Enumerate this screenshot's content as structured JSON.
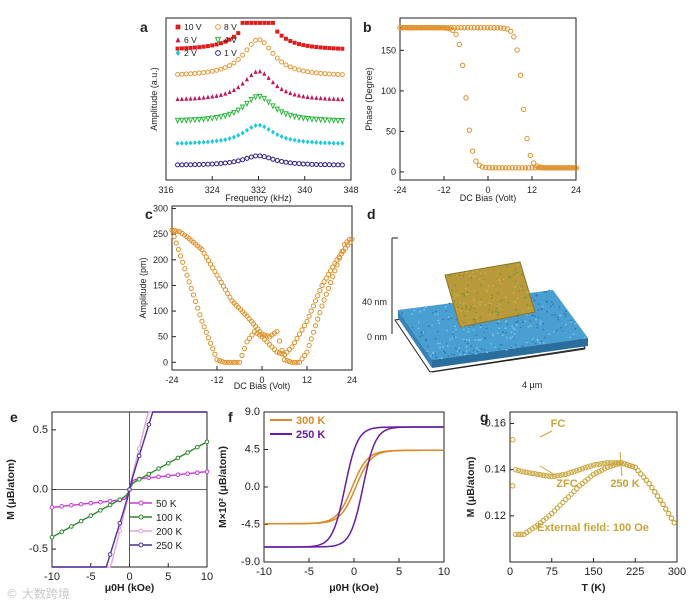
{
  "figure": {
    "watermark": "© 大数跨境",
    "colors": {
      "orange": "#e0902a",
      "purple": "#5b1a8a",
      "axis": "#222222",
      "gold": "#c9a33a"
    }
  },
  "chart_data": [
    {
      "panel": "a",
      "type": "scatter",
      "xlabel": "Frequency (kHz)",
      "ylabel": "Amplitude (a.u.)",
      "xlim": [
        316,
        348
      ],
      "xticks": [
        316,
        324,
        332,
        340,
        348
      ],
      "legend": [
        {
          "name": "10 V",
          "color": "#e01b1b",
          "marker": "square"
        },
        {
          "name": "8 V",
          "color": "#e39a3a",
          "marker": "circle"
        },
        {
          "name": "6 V",
          "color": "#c4145a",
          "marker": "triangle"
        },
        {
          "name": "4 V",
          "color": "#29b83a",
          "marker": "triangle-down"
        },
        {
          "name": "2 V",
          "color": "#1ec9d8",
          "marker": "diamond"
        },
        {
          "name": "1 V",
          "color": "#2c1f8a",
          "marker": "circle"
        }
      ],
      "series": [
        {
          "name": "10 V",
          "baseline": 0.8,
          "peak": 0.72,
          "width": 3.0,
          "color": "#e01b1b"
        },
        {
          "name": "8 V",
          "baseline": 0.64,
          "peak": 0.65,
          "width": 3.2,
          "color": "#e39a3a"
        },
        {
          "name": "6 V",
          "baseline": 0.49,
          "peak": 0.52,
          "width": 3.2,
          "color": "#c4145a"
        },
        {
          "name": "4 V",
          "baseline": 0.36,
          "peak": 0.45,
          "width": 3.2,
          "color": "#29b83a"
        },
        {
          "name": "2 V",
          "baseline": 0.22,
          "peak": 0.34,
          "width": 3.3,
          "color": "#1ec9d8"
        },
        {
          "name": "1 V",
          "baseline": 0.09,
          "peak": 0.17,
          "width": 3.3,
          "color": "#2c1f8a"
        }
      ]
    },
    {
      "panel": "b",
      "type": "scatter",
      "xlabel": "DC Bias (Volt)",
      "ylabel": "Phase (Degree)",
      "xlim": [
        -24,
        24
      ],
      "ylim": [
        -10,
        190
      ],
      "xticks": [
        -24,
        -12,
        0,
        12,
        24
      ],
      "yticks": [
        0,
        50,
        100,
        150
      ],
      "loop": {
        "high": 178,
        "low": 5,
        "switch_down": -6,
        "switch_up": 9,
        "width": 1.8
      }
    },
    {
      "panel": "c",
      "type": "scatter",
      "xlabel": "DC Bias (Volt)",
      "ylabel": "Amplitude (pm)",
      "xlim": [
        -24,
        24
      ],
      "ylim": [
        -15,
        305
      ],
      "xticks": [
        -24,
        -12,
        0,
        12,
        24
      ],
      "yticks": [
        0,
        50,
        100,
        150,
        200,
        250,
        300
      ],
      "branch_down": [
        [
          24,
          240
        ],
        [
          20,
          200
        ],
        [
          16,
          150
        ],
        [
          12,
          80
        ],
        [
          10,
          55
        ],
        [
          8,
          30
        ],
        [
          6,
          15
        ],
        [
          4,
          20
        ],
        [
          2,
          35
        ],
        [
          0,
          50
        ],
        [
          -2,
          60
        ],
        [
          -4,
          40
        ],
        [
          -6,
          0
        ],
        [
          -8,
          0
        ],
        [
          -10,
          0
        ],
        [
          -12,
          5
        ],
        [
          -16,
          80
        ],
        [
          -20,
          170
        ],
        [
          -24,
          258
        ]
      ],
      "branch_up": [
        [
          -24,
          258
        ],
        [
          -22,
          255
        ],
        [
          -20,
          245
        ],
        [
          -16,
          220
        ],
        [
          -12,
          170
        ],
        [
          -8,
          120
        ],
        [
          -4,
          90
        ],
        [
          0,
          55
        ],
        [
          2,
          50
        ],
        [
          4,
          60
        ],
        [
          6,
          5
        ],
        [
          8,
          0
        ],
        [
          10,
          0
        ],
        [
          12,
          20
        ],
        [
          16,
          110
        ],
        [
          20,
          190
        ],
        [
          22,
          230
        ],
        [
          24,
          245
        ]
      ]
    },
    {
      "panel": "d",
      "type": "image",
      "labels": {
        "top": "40 nm",
        "bottom": "0 nm",
        "width": "4 µm"
      }
    },
    {
      "panel": "e",
      "type": "line",
      "xlabel": "μ0H (kOe)",
      "ylabel": "M (μB/atom)",
      "xlim": [
        -10,
        10
      ],
      "ylim": [
        -0.65,
        0.65
      ],
      "xticks": [
        -10,
        -5,
        0,
        5,
        10
      ],
      "yticks": [
        -0.5,
        0.0,
        0.5
      ],
      "series": [
        {
          "name": "50 K",
          "color": "#c63ad8",
          "slope": 0.007,
          "sat": 0.08
        },
        {
          "name": "100 K",
          "color": "#2e8b2e",
          "slope": 0.036,
          "sat": 0.04
        },
        {
          "name": "200 K",
          "color": "#e6a4d8",
          "slope": 0.26,
          "sat": 0.02
        },
        {
          "name": "250 K",
          "color": "#4a2e9a",
          "slope": 0.21,
          "sat": 0.02
        }
      ]
    },
    {
      "panel": "f",
      "type": "line",
      "xlabel": "μ0H (kOe)",
      "ylabel": "M×10² (μB/atom)",
      "xlim": [
        -10,
        10
      ],
      "ylim": [
        -9.0,
        9.0
      ],
      "xticks": [
        -10,
        -5,
        0,
        5,
        10
      ],
      "yticks": [
        -9.0,
        -4.5,
        0.0,
        4.5,
        9.0
      ],
      "series": [
        {
          "name": "300 K",
          "color": "#d98a2a",
          "sat": 4.4,
          "coercive": 0.2,
          "scale": 1.7
        },
        {
          "name": "250 K",
          "color": "#6a1aa0",
          "sat": 7.2,
          "coercive": 1.0,
          "scale": 1.4
        }
      ]
    },
    {
      "panel": "g",
      "type": "scatter",
      "xlabel": "T (K)",
      "ylabel": "M (μB/atom)",
      "xlim": [
        0,
        300
      ],
      "ylim": [
        0.1,
        0.165
      ],
      "xticks": [
        0,
        75,
        150,
        225,
        300
      ],
      "yticks": [
        0.12,
        0.14,
        0.16
      ],
      "annotations": [
        "FC",
        "ZFC",
        "250 K",
        "External field: 100 Oe"
      ],
      "fc": [
        [
          5,
          0.153
        ],
        [
          10,
          0.14
        ],
        [
          25,
          0.139
        ],
        [
          50,
          0.138
        ],
        [
          75,
          0.137
        ],
        [
          100,
          0.138
        ],
        [
          125,
          0.14
        ],
        [
          150,
          0.142
        ],
        [
          175,
          0.143
        ],
        [
          200,
          0.143
        ],
        [
          225,
          0.141
        ],
        [
          250,
          0.134
        ],
        [
          275,
          0.125
        ],
        [
          300,
          0.115
        ]
      ],
      "zfc": [
        [
          5,
          0.133
        ],
        [
          10,
          0.112
        ],
        [
          25,
          0.112
        ],
        [
          50,
          0.116
        ],
        [
          75,
          0.121
        ],
        [
          100,
          0.127
        ],
        [
          125,
          0.133
        ],
        [
          150,
          0.138
        ],
        [
          175,
          0.141
        ],
        [
          200,
          0.143
        ],
        [
          225,
          0.141
        ],
        [
          250,
          0.134
        ],
        [
          275,
          0.125
        ],
        [
          300,
          0.115
        ]
      ]
    }
  ]
}
